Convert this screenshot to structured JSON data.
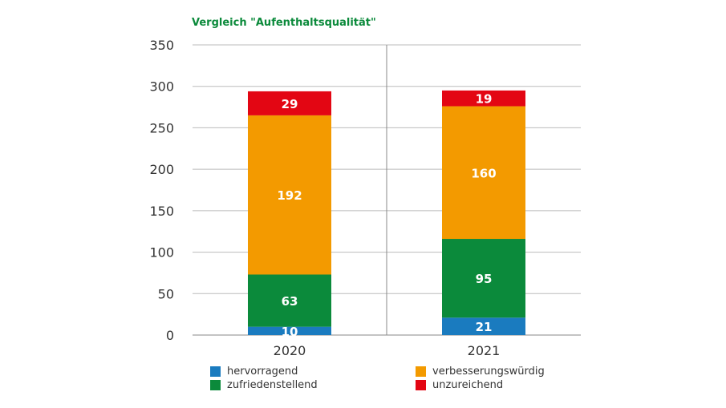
{
  "chart_data": {
    "type": "bar",
    "stacked": true,
    "title": "Vergleich \"Aufenthaltsqualität\"",
    "xlabel": "",
    "ylabel": "",
    "categories": [
      "2020",
      "2021"
    ],
    "ylim": [
      0,
      350
    ],
    "yticks": [
      0,
      50,
      100,
      150,
      200,
      250,
      300,
      350
    ],
    "grid": true,
    "legend_position": "bottom",
    "series": [
      {
        "name": "hervorragend",
        "color": "#1a7bbf",
        "values": [
          10,
          21
        ]
      },
      {
        "name": "zufriedenstellend",
        "color": "#0b8a3b",
        "values": [
          63,
          95
        ]
      },
      {
        "name": "verbesserungswürdig",
        "color": "#f39a00",
        "values": [
          192,
          160
        ]
      },
      {
        "name": "unzureichend",
        "color": "#e30613",
        "values": [
          29,
          19
        ]
      }
    ]
  }
}
